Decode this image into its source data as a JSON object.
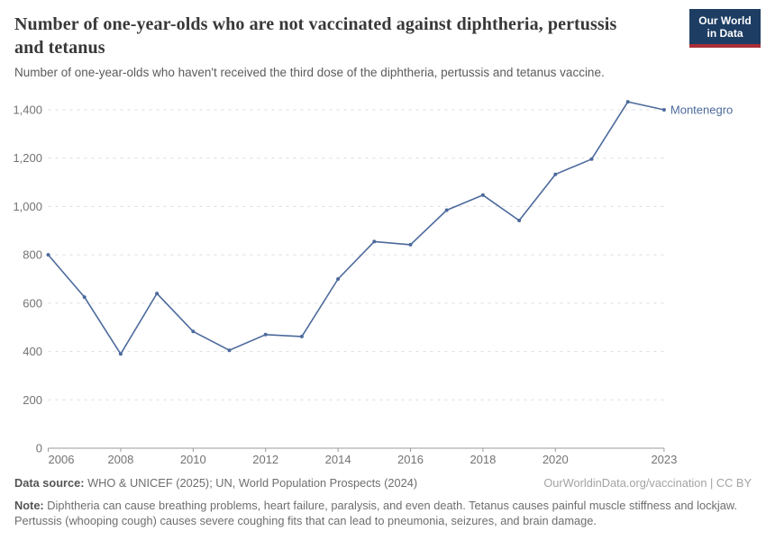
{
  "header": {
    "title": "Number of one-year-olds who are not vaccinated against diphtheria, pertussis and tetanus",
    "subtitle": "Number of one-year-olds who haven't received the third dose of the diphtheria, pertussis and tetanus vaccine.",
    "logo": {
      "line1": "Our World",
      "line2": "in Data"
    }
  },
  "chart_data": {
    "type": "line",
    "title": "Number of one-year-olds who are not vaccinated against diphtheria, pertussis and tetanus",
    "x": [
      2006,
      2007,
      2008,
      2009,
      2010,
      2011,
      2012,
      2013,
      2014,
      2015,
      2016,
      2017,
      2018,
      2019,
      2020,
      2021,
      2022,
      2023
    ],
    "series": [
      {
        "name": "Montenegro",
        "color": "#4c6a9c",
        "values": [
          800,
          625,
          390,
          640,
          483,
          405,
          470,
          462,
          700,
          855,
          842,
          985,
          1047,
          942,
          1133,
          1196,
          1433,
          1400
        ]
      }
    ],
    "xlabel": "",
    "ylabel": "",
    "xlim": [
      2006,
      2023
    ],
    "ylim": [
      0,
      1400
    ],
    "x_ticks": [
      2006,
      2008,
      2010,
      2012,
      2014,
      2016,
      2018,
      2020,
      2023
    ],
    "y_ticks": [
      0,
      200,
      400,
      600,
      800,
      1000,
      1200,
      1400
    ],
    "grid": "horizontal-dashed",
    "legend_position": "end-of-line-label",
    "end_label": "Montenegro"
  },
  "footer": {
    "data_source_label": "Data source:",
    "data_source": "WHO & UNICEF (2025); UN, World Population Prospects (2024)",
    "license": "OurWorldinData.org/vaccination | CC BY",
    "note_label": "Note:",
    "note": "Diphtheria can cause breathing problems, heart failure, paralysis, and even death. Tetanus causes painful muscle stiffness and lockjaw. Pertussis (whooping cough) causes severe coughing fits that can lead to pneumonia, seizures, and brain damage."
  },
  "colors": {
    "line": "#4c6a9c",
    "grid": "#dcdcdc",
    "axis": "#9b9b9b",
    "tick_label": "#737373",
    "logo_bg": "#1d3d63",
    "logo_stripe": "#a92e37"
  }
}
